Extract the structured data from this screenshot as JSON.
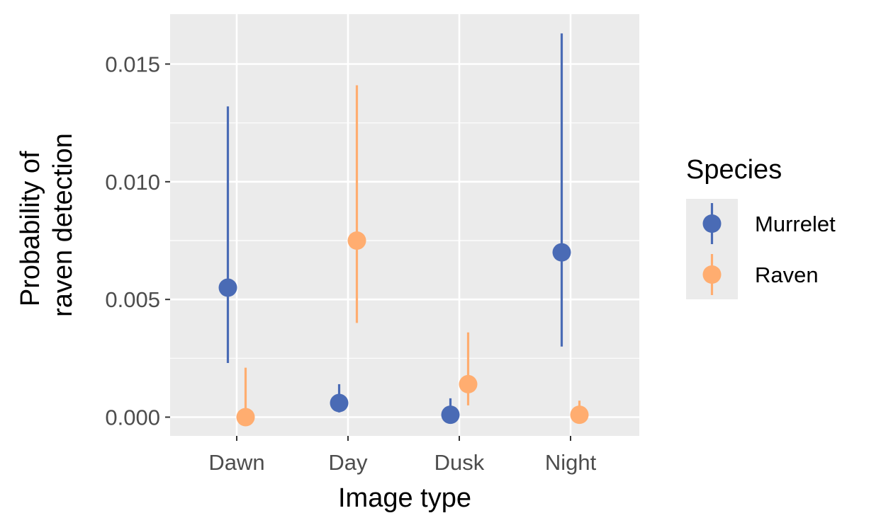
{
  "chart_data": {
    "type": "scatter",
    "subtype": "point-range (dodged)",
    "title": "",
    "xlabel": "Image type",
    "ylabel_lines": [
      "Probability of",
      "raven detection"
    ],
    "categories": [
      "Dawn",
      "Day",
      "Dusk",
      "Night"
    ],
    "ylim": [
      -0.0008,
      0.017
    ],
    "yticks": [
      0.0,
      0.005,
      0.01,
      0.015
    ],
    "ytick_labels": [
      "0.000",
      "0.005",
      "0.010",
      "0.015"
    ],
    "grid": true,
    "background": "#ebebeb",
    "legend": {
      "title": "Species",
      "position": "right"
    },
    "series": [
      {
        "name": "Murrelet",
        "color": "#4a6bb5",
        "values": [
          0.0055,
          0.0006,
          0.0001,
          0.007
        ],
        "lower": [
          0.0023,
          0.0002,
          0.0,
          0.003
        ],
        "upper": [
          0.0132,
          0.0014,
          0.0008,
          0.0163
        ]
      },
      {
        "name": "Raven",
        "color": "#ffad70",
        "values": [
          0.0,
          0.0075,
          0.0014,
          0.0001
        ],
        "lower": [
          0.0,
          0.004,
          0.0005,
          0.0
        ],
        "upper": [
          0.0021,
          0.0141,
          0.0036,
          0.0007
        ]
      }
    ]
  }
}
